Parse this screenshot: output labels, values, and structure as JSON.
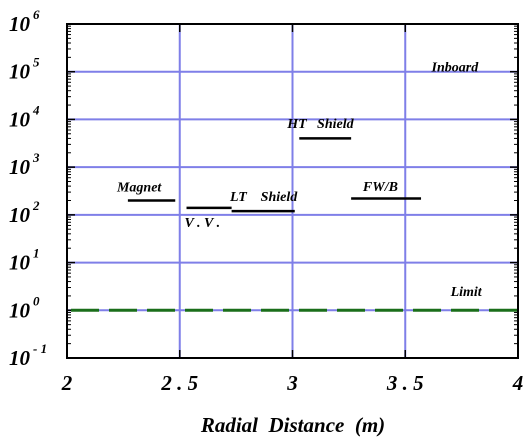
{
  "chart_data": {
    "type": "line",
    "title": "",
    "xlabel": "Radial  Distance  (m)",
    "ylabel": "",
    "xlim": [
      2,
      4
    ],
    "ylim_log10": [
      -1,
      6
    ],
    "y_scale": "log",
    "grid": true,
    "x_ticks": [
      {
        "value": 2,
        "label": "2"
      },
      {
        "value": 2.5,
        "label": "2 . 5"
      },
      {
        "value": 3,
        "label": "3"
      },
      {
        "value": 3.5,
        "label": "3 . 5"
      },
      {
        "value": 4,
        "label": "4"
      }
    ],
    "y_ticks": [
      {
        "exp": 6,
        "base": "10",
        "sup": "6"
      },
      {
        "exp": 5,
        "base": "10",
        "sup": "5"
      },
      {
        "exp": 4,
        "base": "10",
        "sup": "4"
      },
      {
        "exp": 3,
        "base": "10",
        "sup": "3"
      },
      {
        "exp": 2,
        "base": "10",
        "sup": "2"
      },
      {
        "exp": 1,
        "base": "10",
        "sup": "1"
      },
      {
        "exp": 0,
        "base": "10",
        "sup": "0"
      },
      {
        "exp": -1,
        "base": "10",
        "sup": "- 1"
      }
    ],
    "segments": [
      {
        "name": "Magnet",
        "x": [
          2.27,
          2.48
        ],
        "y": 200
      },
      {
        "name": "V.V.",
        "x": [
          2.53,
          2.73
        ],
        "y": 140
      },
      {
        "name": "LT  Shield",
        "x": [
          2.73,
          3.01
        ],
        "y": 120
      },
      {
        "name": "HT  Shield",
        "x": [
          3.03,
          3.26
        ],
        "y": 4000
      },
      {
        "name": "FW/B",
        "x": [
          3.26,
          3.57
        ],
        "y": 220
      }
    ],
    "limit": {
      "label": "Limit",
      "y": 1
    },
    "annotations": [
      {
        "text": "Inboard",
        "x": 3.72,
        "y": 100000
      },
      {
        "text": "Magnet",
        "x": 2.32,
        "y": 310
      },
      {
        "text": "V . V .",
        "x": 2.6,
        "y": 55
      },
      {
        "text": "LT",
        "x": 2.76,
        "y": 195
      },
      {
        "text": "Shield",
        "x": 2.94,
        "y": 195
      },
      {
        "text": "HT",
        "x": 3.02,
        "y": 6600
      },
      {
        "text": "Shield",
        "x": 3.19,
        "y": 6600
      },
      {
        "text": "FW/B",
        "x": 3.39,
        "y": 320
      },
      {
        "text": "Limit",
        "x": 3.77,
        "y": 2.0
      }
    ],
    "colors": {
      "grid": "#7f7fe8",
      "frame": "#000000",
      "segments": "#000000",
      "limit": "#1a6e1a"
    }
  }
}
